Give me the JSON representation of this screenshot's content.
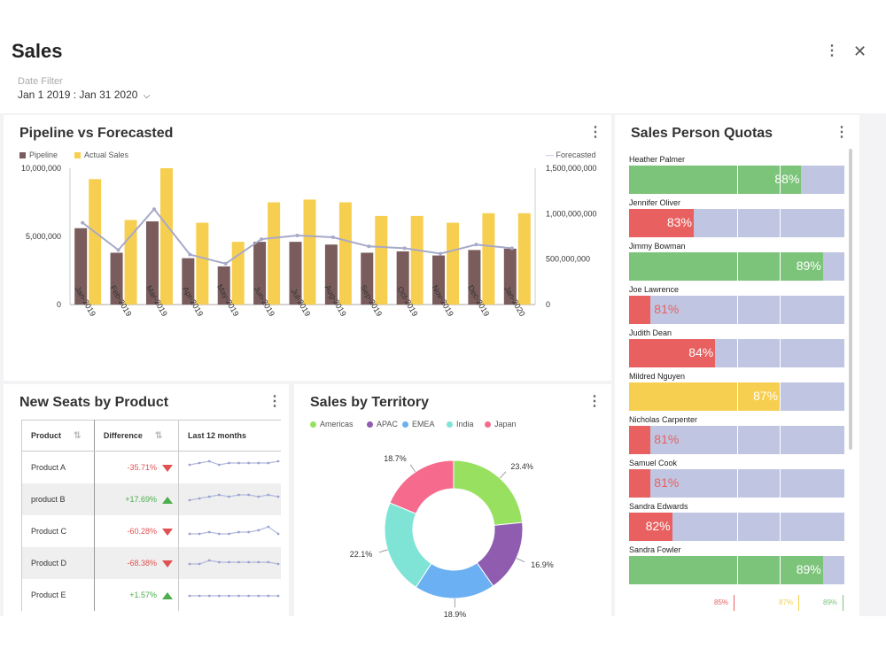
{
  "header": {
    "title": "Sales",
    "date_filter_label": "Date Filter",
    "date_filter_value": "Jan 1 2019 : Jan 31 2020",
    "menu_icon": "vertical-dots-icon",
    "close_icon": "close-icon"
  },
  "pipeline_panel": {
    "title": "Pipeline vs Forecasted",
    "legend": {
      "pipeline": "Pipeline",
      "actual": "Actual Sales",
      "forecasted": "Forecasted"
    },
    "colors": {
      "pipeline": "#7a5c5c",
      "actual": "#f7cf50",
      "forecasted": "#a7a9c9"
    }
  },
  "chart_data": [
    {
      "type": "bar",
      "title": "Pipeline vs Forecasted",
      "categories": [
        "Jan-2019",
        "Feb-2019",
        "Mar-2019",
        "Apr-2019",
        "May-2019",
        "Jun-2019",
        "Jul-2019",
        "Aug-2019",
        "Sep-2019",
        "Oct-2019",
        "Nov-2019",
        "Dec-2019",
        "Jan-2020"
      ],
      "series": [
        {
          "name": "Pipeline",
          "axis": "left",
          "values": [
            5600000,
            3800000,
            6100000,
            3400000,
            2800000,
            4600000,
            4600000,
            4400000,
            3800000,
            3900000,
            3600000,
            4000000,
            4100000
          ]
        },
        {
          "name": "Actual Sales",
          "axis": "left",
          "values": [
            9200000,
            6200000,
            10000000,
            6000000,
            4600000,
            7500000,
            7700000,
            7500000,
            6500000,
            6500000,
            6000000,
            6700000,
            6700000
          ]
        },
        {
          "name": "Forecasted",
          "type": "line",
          "axis": "right",
          "values": [
            900000000,
            600000000,
            1050000000,
            550000000,
            450000000,
            720000000,
            760000000,
            740000000,
            640000000,
            620000000,
            560000000,
            660000000,
            620000000
          ]
        }
      ],
      "left_axis": {
        "ticks": [
          "10,000,000",
          "5,000,000",
          "0"
        ],
        "range": [
          0,
          10000000
        ]
      },
      "right_axis": {
        "ticks": [
          "1,500,000,000",
          "1,000,000,000",
          "500,000,000",
          "0"
        ],
        "range": [
          0,
          1500000000
        ]
      }
    },
    {
      "type": "pie",
      "title": "Sales by Territory",
      "categories": [
        "Americas",
        "APAC",
        "EMEA",
        "India",
        "Japan"
      ],
      "values": [
        23.4,
        16.9,
        18.9,
        22.1,
        18.7
      ],
      "labels": [
        "23.4%",
        "16.9%",
        "18.9%",
        "22.1%",
        "18.7%"
      ],
      "colors": [
        "#98e060",
        "#8f5cb0",
        "#6ab0f2",
        "#7fe4d6",
        "#f56a8d"
      ]
    }
  ],
  "seats_panel": {
    "title": "New Seats by Product",
    "headers": [
      "Product",
      "Difference",
      "Last 12 months"
    ],
    "rows": [
      {
        "product": "Product A",
        "difference": "-35.71%",
        "trend": "down",
        "spark": [
          5,
          6,
          7,
          5,
          6,
          6,
          6,
          6,
          6,
          7
        ]
      },
      {
        "product": "product B",
        "difference": "+17.69%",
        "trend": "up",
        "spark": [
          3,
          4,
          5,
          6,
          5,
          6,
          6,
          5,
          6,
          5
        ]
      },
      {
        "product": "Product C",
        "difference": "-60.28%",
        "trend": "down",
        "spark": [
          2,
          2,
          3,
          2,
          2,
          3,
          3,
          4,
          6,
          2
        ]
      },
      {
        "product": "Product D",
        "difference": "-68.38%",
        "trend": "down",
        "spark": [
          3,
          3,
          5,
          4,
          4,
          4,
          4,
          4,
          4,
          3
        ]
      },
      {
        "product": "Product E",
        "difference": "+1.57%",
        "trend": "up",
        "spark": [
          3,
          3,
          3,
          3,
          3,
          3,
          3,
          3,
          3,
          3
        ]
      }
    ]
  },
  "territory_panel": {
    "title": "Sales by Territory"
  },
  "quotas_panel": {
    "title": "Sales Person Quotas",
    "people": [
      {
        "name": "Heather Palmer",
        "pct": 88,
        "label": "88%",
        "color": "#7dc47b"
      },
      {
        "name": "Jennifer Oliver",
        "pct": 83,
        "label": "83%",
        "color": "#e86060"
      },
      {
        "name": "Jimmy Bowman",
        "pct": 89,
        "label": "89%",
        "color": "#7dc47b"
      },
      {
        "name": "Joe Lawrence",
        "pct": 81,
        "label": "81%",
        "color": "#e86060"
      },
      {
        "name": "Judith Dean",
        "pct": 84,
        "label": "84%",
        "color": "#e86060"
      },
      {
        "name": "Mildred Nguyen",
        "pct": 87,
        "label": "87%",
        "color": "#f7cf50"
      },
      {
        "name": "Nicholas Carpenter",
        "pct": 81,
        "label": "81%",
        "color": "#e86060"
      },
      {
        "name": "Samuel Cook",
        "pct": 81,
        "label": "81%",
        "color": "#e86060"
      },
      {
        "name": "Sandra Edwards",
        "pct": 82,
        "label": "82%",
        "color": "#e86060"
      },
      {
        "name": "Sandra Fowler",
        "pct": 89,
        "label": "89%",
        "color": "#7dc47b"
      }
    ],
    "thresholds": [
      {
        "label": "85%",
        "color": "#e86060"
      },
      {
        "label": "87%",
        "color": "#f7cf50"
      },
      {
        "label": "89%",
        "color": "#7dc47b"
      }
    ]
  }
}
